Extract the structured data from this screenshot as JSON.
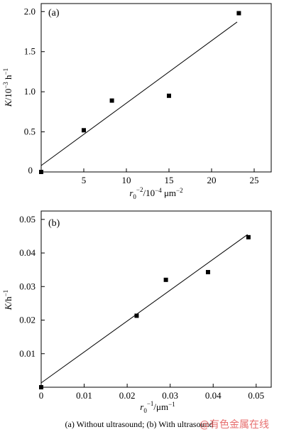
{
  "chart_data": [
    {
      "type": "scatter",
      "panel_tag": "(a)",
      "points": [
        {
          "x": 0,
          "y": 0
        },
        {
          "x": 5,
          "y": 0.52
        },
        {
          "x": 8.3,
          "y": 0.89
        },
        {
          "x": 15,
          "y": 0.95
        },
        {
          "x": 23.2,
          "y": 1.98
        }
      ],
      "fit_line": {
        "x": [
          0,
          23
        ],
        "y": [
          0.08,
          1.87
        ]
      },
      "x_ticks": [
        "0",
        "5",
        "10",
        "15",
        "20",
        "25"
      ],
      "y_ticks": [
        "0.5",
        "1.0",
        "1.5",
        "2.0"
      ],
      "xlim": [
        0,
        27
      ],
      "ylim": [
        0,
        2.1
      ],
      "xlabel": "r0−2/10−4 μm−2",
      "ylabel": "K/10−3 h−1",
      "grid": false
    },
    {
      "type": "scatter",
      "panel_tag": "(b)",
      "points": [
        {
          "x": 0,
          "y": 0
        },
        {
          "x": 0.0222,
          "y": 0.0213
        },
        {
          "x": 0.029,
          "y": 0.032
        },
        {
          "x": 0.0388,
          "y": 0.0343
        },
        {
          "x": 0.0482,
          "y": 0.0447
        }
      ],
      "fit_line": {
        "x": [
          0,
          0.048
        ],
        "y": [
          0.0013,
          0.0455
        ]
      },
      "x_ticks": [
        "0",
        "0.01",
        "0.02",
        "0.03",
        "0.04",
        "0.05"
      ],
      "y_ticks": [
        "0.01",
        "0.02",
        "0.03",
        "0.04",
        "0.05"
      ],
      "xlim": [
        0,
        0.0535
      ],
      "ylim": [
        0,
        0.0525
      ],
      "xlabel": "r0−1/μm−1",
      "ylabel": "K/h−1",
      "grid": false
    }
  ],
  "caption": "(a) Without ultrasound; (b) With ultrasound",
  "watermark": "@有色金属在线"
}
